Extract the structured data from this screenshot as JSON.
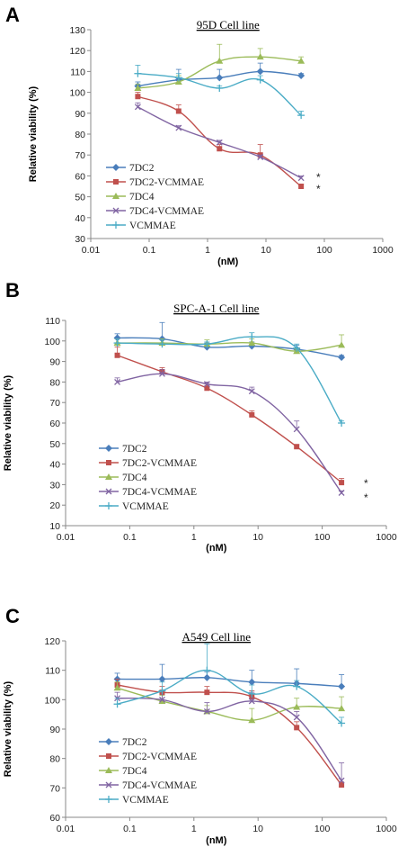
{
  "chart_data": [
    {
      "panel": "A",
      "type": "line",
      "title": "95D Cell line",
      "xlabel": "(nM)",
      "ylabel": "Relative viability (%)",
      "xscale": "log",
      "xlim": [
        0.01,
        1000
      ],
      "ylim": [
        30,
        130
      ],
      "xticks": [
        "0.01",
        "0.1",
        "1",
        "10",
        "100",
        "1000"
      ],
      "yticks": [
        "30",
        "40",
        "50",
        "60",
        "70",
        "80",
        "90",
        "100",
        "110",
        "120",
        "130"
      ],
      "legend_position": "lower-left",
      "series": [
        {
          "name": "7DC2",
          "color": "#4a7ebb",
          "marker": "diamond",
          "x": [
            0.064,
            0.32,
            1.6,
            8,
            40
          ],
          "y": [
            103,
            106,
            107,
            110,
            108
          ],
          "err": [
            2,
            5,
            4,
            4,
            1
          ]
        },
        {
          "name": "7DC2-VCMMAE",
          "color": "#c0504d",
          "marker": "square",
          "x": [
            0.064,
            0.32,
            1.6,
            8,
            40
          ],
          "y": [
            98,
            91,
            73,
            70,
            55
          ],
          "err": [
            2,
            3,
            2,
            5,
            1
          ]
        },
        {
          "name": "7DC4",
          "color": "#9bbb59",
          "marker": "triangle",
          "x": [
            0.064,
            0.32,
            1.6,
            8,
            40
          ],
          "y": [
            102,
            105,
            115,
            117,
            115
          ],
          "err": [
            2,
            3,
            8,
            4,
            2
          ]
        },
        {
          "name": "7DC4-VCMMAE",
          "color": "#8064a2",
          "marker": "x",
          "x": [
            0.064,
            0.32,
            1.6,
            8,
            40
          ],
          "y": [
            93,
            83,
            76,
            69,
            59
          ],
          "err": [
            2,
            1,
            1,
            1,
            1
          ]
        },
        {
          "name": "VCMMAE",
          "color": "#4bacc6",
          "marker": "cross",
          "x": [
            0.064,
            0.32,
            1.6,
            8,
            40
          ],
          "y": [
            109,
            107,
            102,
            106,
            89
          ],
          "err": [
            4,
            2,
            1,
            2,
            2
          ]
        }
      ],
      "annotations": [
        "*",
        "*"
      ]
    },
    {
      "panel": "B",
      "type": "line",
      "title": "SPC-A-1 Cell line",
      "xlabel": "(nM)",
      "ylabel": "Relative viability (%)",
      "xscale": "log",
      "xlim": [
        0.01,
        1000
      ],
      "ylim": [
        10,
        110
      ],
      "xticks": [
        "0.01",
        "0.1",
        "1",
        "10",
        "100",
        "1000"
      ],
      "yticks": [
        "10",
        "20",
        "30",
        "40",
        "50",
        "60",
        "70",
        "80",
        "90",
        "100",
        "110"
      ],
      "legend_position": "lower-left",
      "series": [
        {
          "name": "7DC2",
          "color": "#4a7ebb",
          "marker": "diamond",
          "x": [
            0.064,
            0.32,
            1.6,
            8,
            40,
            200
          ],
          "y": [
            101.5,
            101,
            97,
            97.5,
            96,
            92
          ],
          "err": [
            2,
            8,
            2,
            2,
            2,
            1
          ]
        },
        {
          "name": "7DC2-VCMMAE",
          "color": "#c0504d",
          "marker": "square",
          "x": [
            0.064,
            0.32,
            1.6,
            8,
            40,
            200
          ],
          "y": [
            93,
            85,
            77,
            64,
            48.5,
            31
          ],
          "err": [
            4,
            2,
            2,
            2,
            1,
            2
          ]
        },
        {
          "name": "7DC4",
          "color": "#9bbb59",
          "marker": "triangle",
          "x": [
            0.064,
            0.32,
            1.6,
            8,
            40,
            200
          ],
          "y": [
            99,
            99,
            98.5,
            99,
            95,
            98
          ],
          "err": [
            2,
            2,
            2,
            2,
            1,
            5
          ]
        },
        {
          "name": "7DC4-VCMMAE",
          "color": "#8064a2",
          "marker": "x",
          "x": [
            0.064,
            0.32,
            1.6,
            8,
            40,
            200
          ],
          "y": [
            80,
            84,
            79,
            75.5,
            57,
            26
          ],
          "err": [
            2,
            2,
            1,
            2,
            4,
            1
          ]
        },
        {
          "name": "VCMMAE",
          "color": "#4bacc6",
          "marker": "cross",
          "x": [
            0.064,
            0.32,
            1.6,
            8,
            40,
            200
          ],
          "y": [
            99,
            98.5,
            98.5,
            102,
            96.5,
            60
          ],
          "err": [
            2,
            2,
            1,
            2,
            2,
            1
          ]
        }
      ],
      "annotations": [
        "*",
        "*"
      ]
    },
    {
      "panel": "C",
      "type": "line",
      "title": "A549 Cell line",
      "xlabel": "(nM)",
      "ylabel": "Relative viability (%)",
      "xscale": "log",
      "xlim": [
        0.01,
        1000
      ],
      "ylim": [
        60,
        120
      ],
      "xticks": [
        "0.01",
        "0.1",
        "1",
        "10",
        "100",
        "1000"
      ],
      "yticks": [
        "60",
        "70",
        "80",
        "90",
        "100",
        "110",
        "120"
      ],
      "legend_position": "lower-left",
      "series": [
        {
          "name": "7DC2",
          "color": "#4a7ebb",
          "marker": "diamond",
          "x": [
            0.064,
            0.32,
            1.6,
            8,
            40,
            200
          ],
          "y": [
            107,
            107,
            107.5,
            106,
            105.5,
            104.5
          ],
          "err": [
            2,
            5,
            2,
            4,
            5,
            4
          ]
        },
        {
          "name": "7DC2-VCMMAE",
          "color": "#c0504d",
          "marker": "square",
          "x": [
            0.064,
            0.32,
            1.6,
            8,
            40,
            200
          ],
          "y": [
            105,
            102.5,
            102.5,
            101,
            90.5,
            71
          ],
          "err": [
            2,
            2,
            2,
            2,
            2,
            1
          ]
        },
        {
          "name": "7DC4",
          "color": "#9bbb59",
          "marker": "triangle",
          "x": [
            0.064,
            0.32,
            1.6,
            8,
            40,
            200
          ],
          "y": [
            104,
            99.5,
            96,
            93,
            97.5,
            97
          ],
          "err": [
            2,
            2,
            2,
            4,
            3,
            4
          ]
        },
        {
          "name": "7DC4-VCMMAE",
          "color": "#8064a2",
          "marker": "x",
          "x": [
            0.064,
            0.32,
            1.6,
            8,
            40,
            200
          ],
          "y": [
            100.5,
            100,
            96,
            99.5,
            94,
            72.5
          ],
          "err": [
            2,
            3,
            3,
            3,
            2,
            6
          ]
        },
        {
          "name": "VCMMAE",
          "color": "#4bacc6",
          "marker": "cross",
          "x": [
            0.064,
            0.32,
            1.6,
            8,
            40,
            200
          ],
          "y": [
            98.5,
            103,
            110,
            102,
            104.5,
            92
          ],
          "err": [
            2,
            3,
            9,
            3,
            2,
            2
          ]
        }
      ],
      "annotations": []
    }
  ]
}
